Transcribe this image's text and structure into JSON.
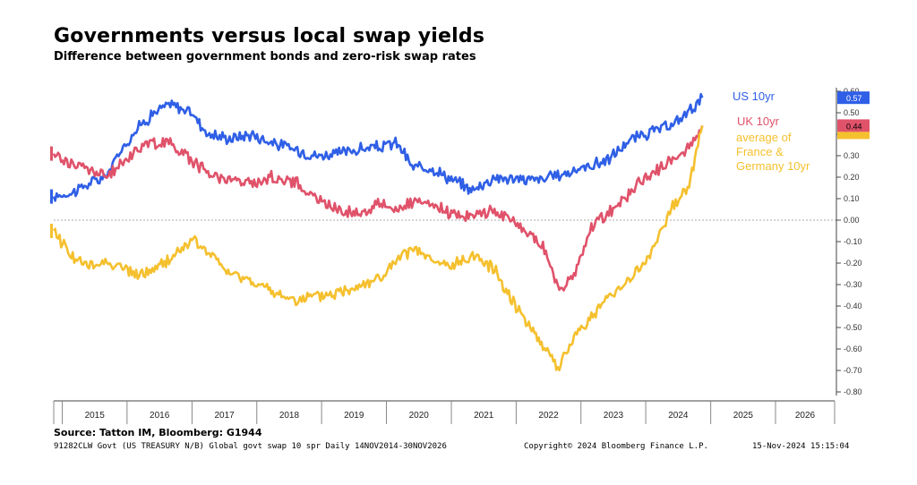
{
  "title": "Governments versus local swap yields",
  "subtitle": "Difference between government bonds and zero-risk swap rates",
  "source": "Source: Tatton IM, Bloomberg: G1944",
  "footer": {
    "left": "91282CLW Govt (US TREASURY N/B) Global govt swap 10 spr  Daily 14NOV2014-30NOV2026",
    "middle": "Copyright© 2024 Bloomberg Finance L.P.",
    "right": "15-Nov-2024 15:15:04"
  },
  "chart_data": {
    "type": "line",
    "title": "Governments versus local swap yields",
    "subtitle": "Difference between government bonds and zero-risk swap rates",
    "xlabel": "",
    "ylabel": "",
    "x_start": "2014-11-14",
    "x_end": "2026-11-30",
    "year_labels": [
      "2015",
      "2016",
      "2017",
      "2018",
      "2019",
      "2020",
      "2021",
      "2022",
      "2023",
      "2024",
      "2025",
      "2026"
    ],
    "ylim": [
      -0.8,
      0.6
    ],
    "yticks": [
      "0.60",
      "0.50",
      "0.40",
      "0.30",
      "0.20",
      "0.10",
      "0.00",
      "-0.10",
      "-0.20",
      "-0.30",
      "-0.40",
      "-0.50",
      "-0.60",
      "-0.70",
      "-0.80"
    ],
    "zero_line": true,
    "series": [
      {
        "name": "US 10yr",
        "color": "#2f5fe6",
        "last_value": "0.57",
        "points": [
          [
            "2014-11-14",
            0.11
          ],
          [
            "2015-03",
            0.13
          ],
          [
            "2015-06",
            0.17
          ],
          [
            "2015-09",
            0.2
          ],
          [
            "2015-12",
            0.33
          ],
          [
            "2016-03",
            0.43
          ],
          [
            "2016-06",
            0.5
          ],
          [
            "2016-09",
            0.54
          ],
          [
            "2017-01",
            0.5
          ],
          [
            "2017-04",
            0.4
          ],
          [
            "2017-08",
            0.38
          ],
          [
            "2017-12",
            0.4
          ],
          [
            "2018-04",
            0.36
          ],
          [
            "2018-08",
            0.33
          ],
          [
            "2018-12",
            0.3
          ],
          [
            "2019-04",
            0.31
          ],
          [
            "2019-08",
            0.33
          ],
          [
            "2019-12",
            0.34
          ],
          [
            "2020-03",
            0.36
          ],
          [
            "2020-06",
            0.24
          ],
          [
            "2020-09",
            0.25
          ],
          [
            "2021-01",
            0.19
          ],
          [
            "2021-05",
            0.14
          ],
          [
            "2021-09",
            0.2
          ],
          [
            "2022-01",
            0.19
          ],
          [
            "2022-06",
            0.19
          ],
          [
            "2022-09",
            0.21
          ],
          [
            "2023-01",
            0.24
          ],
          [
            "2023-06",
            0.28
          ],
          [
            "2023-10",
            0.37
          ],
          [
            "2024-02",
            0.41
          ],
          [
            "2024-06",
            0.44
          ],
          [
            "2024-09",
            0.51
          ],
          [
            "2024-11-15",
            0.57
          ]
        ]
      },
      {
        "name": "UK 10yr",
        "color": "#e0526a",
        "last_value": "0.44",
        "points": [
          [
            "2014-11-14",
            0.31
          ],
          [
            "2015-03",
            0.26
          ],
          [
            "2015-06",
            0.24
          ],
          [
            "2015-09",
            0.2
          ],
          [
            "2015-12",
            0.26
          ],
          [
            "2016-03",
            0.34
          ],
          [
            "2016-06",
            0.36
          ],
          [
            "2016-09",
            0.36
          ],
          [
            "2017-01",
            0.28
          ],
          [
            "2017-04",
            0.22
          ],
          [
            "2017-08",
            0.19
          ],
          [
            "2017-12",
            0.17
          ],
          [
            "2018-04",
            0.2
          ],
          [
            "2018-08",
            0.18
          ],
          [
            "2018-12",
            0.1
          ],
          [
            "2019-04",
            0.05
          ],
          [
            "2019-08",
            0.03
          ],
          [
            "2019-12",
            0.08
          ],
          [
            "2020-03",
            0.05
          ],
          [
            "2020-06",
            0.08
          ],
          [
            "2020-09",
            0.07
          ],
          [
            "2021-01",
            0.03
          ],
          [
            "2021-05",
            0.02
          ],
          [
            "2021-09",
            0.05
          ],
          [
            "2022-01",
            -0.02
          ],
          [
            "2022-06",
            -0.12
          ],
          [
            "2022-09",
            -0.33
          ],
          [
            "2022-12",
            -0.25
          ],
          [
            "2023-03",
            -0.03
          ],
          [
            "2023-07",
            0.05
          ],
          [
            "2024-01",
            0.2
          ],
          [
            "2024-06",
            0.28
          ],
          [
            "2024-09",
            0.34
          ],
          [
            "2024-11-15",
            0.44
          ]
        ]
      },
      {
        "name": "average of France & Germany 10yr",
        "color": "#f5c02e",
        "last_value": "",
        "points": [
          [
            "2014-11-14",
            -0.05
          ],
          [
            "2015-03",
            -0.17
          ],
          [
            "2015-06",
            -0.22
          ],
          [
            "2015-09",
            -0.19
          ],
          [
            "2015-12",
            -0.22
          ],
          [
            "2016-03",
            -0.26
          ],
          [
            "2016-06",
            -0.23
          ],
          [
            "2016-09",
            -0.18
          ],
          [
            "2017-01",
            -0.09
          ],
          [
            "2017-04",
            -0.15
          ],
          [
            "2017-08",
            -0.25
          ],
          [
            "2017-12",
            -0.28
          ],
          [
            "2018-04",
            -0.34
          ],
          [
            "2018-08",
            -0.37
          ],
          [
            "2018-12",
            -0.36
          ],
          [
            "2019-04",
            -0.34
          ],
          [
            "2019-08",
            -0.3
          ],
          [
            "2019-12",
            -0.27
          ],
          [
            "2020-03",
            -0.19
          ],
          [
            "2020-06",
            -0.13
          ],
          [
            "2020-09",
            -0.19
          ],
          [
            "2021-01",
            -0.22
          ],
          [
            "2021-05",
            -0.16
          ],
          [
            "2021-09",
            -0.23
          ],
          [
            "2022-01",
            -0.4
          ],
          [
            "2022-06",
            -0.58
          ],
          [
            "2022-09",
            -0.69
          ],
          [
            "2022-12",
            -0.53
          ],
          [
            "2023-03",
            -0.45
          ],
          [
            "2023-07",
            -0.34
          ],
          [
            "2024-01",
            -0.2
          ],
          [
            "2024-06",
            0.06
          ],
          [
            "2024-09",
            0.17
          ],
          [
            "2024-11-15",
            0.44
          ]
        ]
      }
    ],
    "legend_labels": {
      "us": "US 10yr",
      "uk": "UK 10yr",
      "eu_line1": "average of",
      "eu_line2": "France &",
      "eu_line3": "Germany 10yr"
    }
  }
}
